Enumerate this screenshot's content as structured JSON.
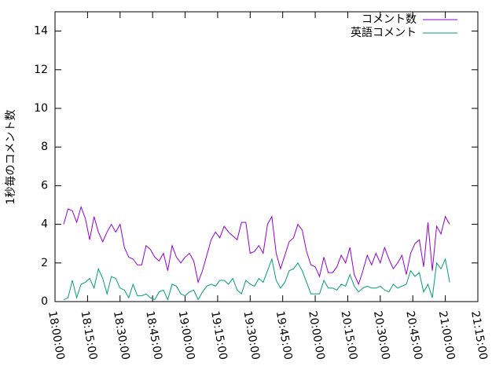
{
  "chart_data": {
    "type": "line",
    "ylabel": "1秒毎のコメント数",
    "x": [
      "18:04:00",
      "18:06:00",
      "18:08:00",
      "18:10:00",
      "18:12:00",
      "18:14:00",
      "18:16:00",
      "18:18:00",
      "18:20:00",
      "18:22:00",
      "18:24:00",
      "18:26:00",
      "18:28:00",
      "18:30:00",
      "18:32:00",
      "18:34:00",
      "18:36:00",
      "18:38:00",
      "18:40:00",
      "18:42:00",
      "18:44:00",
      "18:46:00",
      "18:48:00",
      "18:50:00",
      "18:52:00",
      "18:54:00",
      "18:56:00",
      "18:58:00",
      "19:00:00",
      "19:02:00",
      "19:04:00",
      "19:06:00",
      "19:08:00",
      "19:10:00",
      "19:12:00",
      "19:14:00",
      "19:16:00",
      "19:18:00",
      "19:20:00",
      "19:22:00",
      "19:24:00",
      "19:26:00",
      "19:28:00",
      "19:30:00",
      "19:32:00",
      "19:34:00",
      "19:36:00",
      "19:38:00",
      "19:40:00",
      "19:42:00",
      "19:44:00",
      "19:46:00",
      "19:48:00",
      "19:50:00",
      "19:52:00",
      "19:54:00",
      "19:56:00",
      "19:58:00",
      "20:00:00",
      "20:02:00",
      "20:04:00",
      "20:06:00",
      "20:08:00",
      "20:10:00",
      "20:12:00",
      "20:14:00",
      "20:16:00",
      "20:18:00",
      "20:20:00",
      "20:22:00",
      "20:24:00",
      "20:26:00",
      "20:28:00",
      "20:30:00",
      "20:32:00",
      "20:34:00",
      "20:36:00",
      "20:38:00",
      "20:40:00",
      "20:42:00",
      "20:44:00",
      "20:46:00",
      "20:48:00",
      "20:50:00",
      "20:52:00",
      "20:54:00",
      "20:56:00",
      "20:58:00",
      "21:00:00",
      "21:02:00"
    ],
    "series": [
      {
        "name": "コメント数",
        "color": "#9400d3",
        "values": [
          4.0,
          4.8,
          4.7,
          4.1,
          4.9,
          4.3,
          3.2,
          4.4,
          3.6,
          3.1,
          3.6,
          4.0,
          3.6,
          4.0,
          2.8,
          2.3,
          2.2,
          1.9,
          1.9,
          2.9,
          2.7,
          2.3,
          2.1,
          2.5,
          1.6,
          2.9,
          2.3,
          2.0,
          2.3,
          2.5,
          2.1,
          1.0,
          1.6,
          2.4,
          3.2,
          3.6,
          3.3,
          3.9,
          3.6,
          3.4,
          3.2,
          4.1,
          4.1,
          2.5,
          2.6,
          2.9,
          2.5,
          4.0,
          4.4,
          2.5,
          1.7,
          2.4,
          3.1,
          3.3,
          4.0,
          3.7,
          2.6,
          1.9,
          1.8,
          1.3,
          2.3,
          1.5,
          1.5,
          1.8,
          2.4,
          2.0,
          2.8,
          1.4,
          0.9,
          1.6,
          2.4,
          1.9,
          2.5,
          2.0,
          2.8,
          2.2,
          1.7,
          2.0,
          2.4,
          1.4,
          2.5,
          3.0,
          3.2,
          1.8,
          4.1,
          1.6,
          3.9,
          3.5,
          4.4,
          4.0
        ]
      },
      {
        "name": "英語コメント",
        "color": "#009e73",
        "values": [
          0.1,
          0.2,
          1.1,
          0.2,
          0.9,
          1.0,
          1.2,
          0.7,
          1.7,
          1.2,
          0.4,
          1.3,
          1.2,
          0.7,
          0.6,
          0.2,
          0.9,
          0.3,
          0.3,
          0.4,
          0.2,
          0.1,
          0.5,
          0.6,
          0.1,
          0.9,
          0.8,
          0.4,
          0.3,
          0.5,
          0.6,
          0.1,
          0.5,
          0.8,
          0.9,
          0.8,
          1.1,
          1.1,
          0.9,
          1.2,
          0.6,
          0.4,
          1.1,
          0.9,
          0.8,
          1.2,
          1.0,
          1.6,
          2.2,
          1.1,
          0.7,
          1.0,
          1.6,
          1.7,
          2.0,
          1.6,
          1.0,
          0.4,
          0.4,
          0.4,
          1.1,
          0.7,
          0.7,
          0.6,
          0.9,
          0.8,
          1.4,
          0.8,
          0.5,
          0.7,
          0.8,
          0.7,
          0.7,
          0.8,
          0.6,
          0.5,
          0.9,
          0.7,
          0.8,
          0.9,
          1.6,
          1.3,
          1.5,
          0.5,
          0.9,
          0.2,
          2.0,
          1.7,
          2.2,
          1.0
        ]
      }
    ],
    "xlim": [
      "18:00:00",
      "21:15:00"
    ],
    "xticks": [
      "18:00:00",
      "18:15:00",
      "18:30:00",
      "18:45:00",
      "19:00:00",
      "19:15:00",
      "19:30:00",
      "19:45:00",
      "20:00:00",
      "20:15:00",
      "20:30:00",
      "20:45:00",
      "21:00:00",
      "21:15:00"
    ],
    "ylim": [
      0,
      15
    ],
    "yticks": [
      0,
      2,
      4,
      6,
      8,
      10,
      12,
      14
    ],
    "legend": "top-right"
  }
}
